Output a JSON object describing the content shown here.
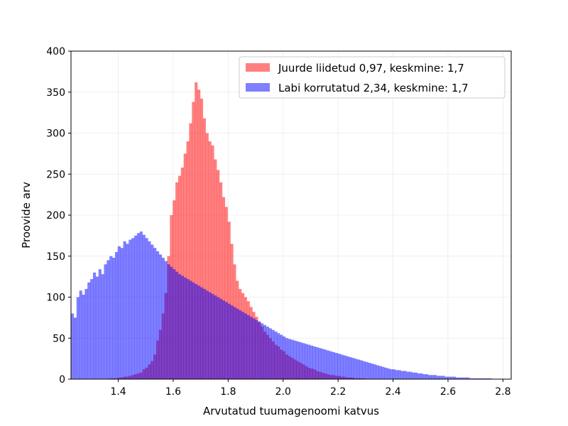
{
  "chart_data": {
    "type": "histogram",
    "title": "",
    "xlabel": "Arvutatud tuumagenoomi katvus",
    "ylabel": "Proovide arv",
    "xlim": [
      1.228,
      2.83
    ],
    "ylim": [
      0,
      400
    ],
    "bin_width": 0.01,
    "x_ticks": [
      "1.4",
      "1.6",
      "1.8",
      "2.0",
      "2.2",
      "2.4",
      "2.6",
      "2.8"
    ],
    "y_ticks": [
      "0",
      "50",
      "100",
      "150",
      "200",
      "250",
      "300",
      "350",
      "400"
    ],
    "grid": true,
    "legend": {
      "placement": "top-right"
    },
    "series": [
      {
        "name": "Juurde liidetud 0,97, keskmine: 1,7",
        "color": "#ff0000",
        "alpha": 0.5,
        "x_start": 1.228,
        "values": [
          0,
          0,
          0,
          0,
          0,
          0,
          0,
          0,
          0,
          0,
          0,
          0,
          0,
          0,
          1,
          1,
          1,
          2,
          2,
          3,
          3,
          4,
          5,
          6,
          7,
          8,
          12,
          14,
          18,
          22,
          30,
          47,
          60,
          80,
          105,
          150,
          200,
          218,
          240,
          248,
          258,
          275,
          290,
          312,
          338,
          362,
          353,
          342,
          318,
          300,
          290,
          285,
          268,
          255,
          240,
          222,
          210,
          192,
          165,
          140,
          120,
          110,
          105,
          100,
          95,
          88,
          82,
          76,
          70,
          64,
          58,
          54,
          50,
          46,
          42,
          40,
          36,
          34,
          30,
          28,
          26,
          24,
          22,
          20,
          18,
          16,
          14,
          13,
          12,
          10,
          9,
          8,
          7,
          6,
          5,
          5,
          4,
          4,
          3,
          3,
          2,
          2,
          2,
          1,
          1,
          1,
          1,
          0,
          0,
          0,
          0,
          0,
          0,
          0,
          0,
          0,
          0,
          0,
          0,
          0,
          0,
          0,
          0,
          0,
          0,
          0,
          0,
          0,
          0,
          0,
          0,
          0,
          0,
          0,
          0,
          0,
          0,
          0,
          0,
          0,
          0,
          0,
          0,
          0,
          0,
          0,
          0,
          0,
          0,
          0,
          0,
          0,
          0,
          0
        ]
      },
      {
        "name": "Labi korrutatud 2,34, keskmine: 1,7",
        "color": "#0000ff",
        "alpha": 0.5,
        "x_start": 1.228,
        "values": [
          80,
          75,
          100,
          108,
          103,
          110,
          118,
          122,
          130,
          125,
          134,
          128,
          140,
          145,
          150,
          148,
          155,
          162,
          160,
          168,
          165,
          170,
          172,
          175,
          178,
          180,
          176,
          172,
          168,
          164,
          160,
          156,
          152,
          148,
          144,
          140,
          137,
          134,
          131,
          128,
          126,
          124,
          122,
          120,
          118,
          116,
          114,
          112,
          110,
          108,
          106,
          104,
          102,
          100,
          98,
          96,
          94,
          92,
          90,
          88,
          86,
          84,
          82,
          80,
          78,
          76,
          74,
          72,
          70,
          68,
          66,
          64,
          62,
          60,
          58,
          56,
          54,
          52,
          50,
          49,
          48,
          47,
          46,
          45,
          44,
          43,
          42,
          41,
          40,
          39,
          38,
          37,
          36,
          35,
          34,
          33,
          32,
          31,
          30,
          29,
          28,
          27,
          26,
          25,
          24,
          23,
          22,
          21,
          20,
          19,
          18,
          17,
          16,
          15,
          14,
          13,
          12,
          12,
          11,
          11,
          10,
          10,
          9,
          9,
          8,
          8,
          7,
          7,
          6,
          6,
          5,
          5,
          5,
          4,
          4,
          4,
          3,
          3,
          3,
          3,
          2,
          2,
          2,
          2,
          2,
          1,
          1,
          1,
          1,
          1,
          1,
          1,
          1,
          0,
          0,
          0,
          0,
          0,
          0
        ]
      }
    ]
  }
}
